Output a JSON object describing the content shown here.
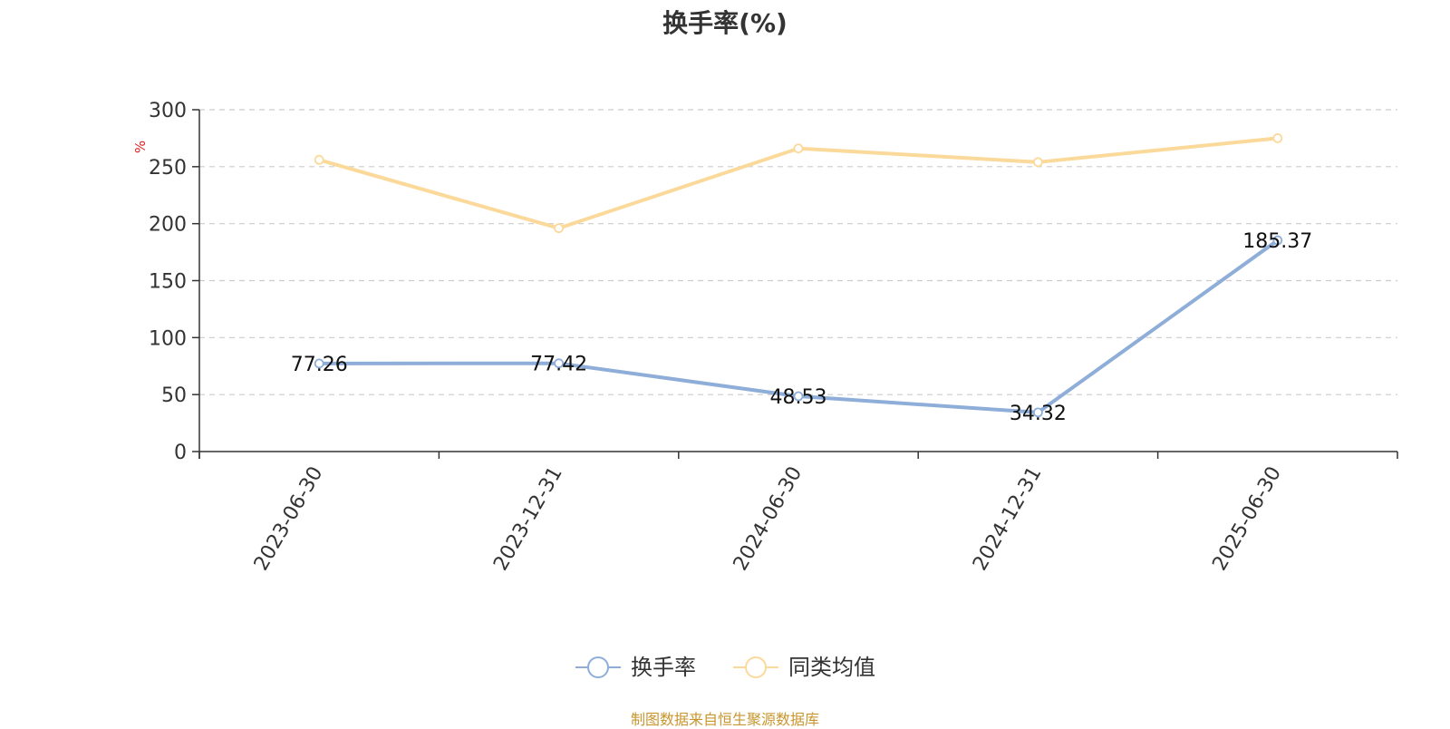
{
  "chart_data": {
    "type": "line",
    "title": "换手率(%)",
    "ylabel": "%",
    "xlabel": "",
    "categories": [
      "2023-06-30",
      "2023-12-31",
      "2024-06-30",
      "2024-12-31",
      "2025-06-30"
    ],
    "ylim": [
      0,
      300
    ],
    "yticks": [
      0,
      50,
      100,
      150,
      200,
      250,
      300
    ],
    "grid": true,
    "legend_position": "bottom",
    "series": [
      {
        "name": "换手率",
        "color": "#8eaed9",
        "values": [
          77.26,
          77.42,
          48.53,
          34.32,
          185.37
        ],
        "show_labels": true
      },
      {
        "name": "同类均值",
        "color": "#fbd99a",
        "values": [
          256,
          196,
          266,
          254,
          275
        ],
        "show_labels": false
      }
    ],
    "source_note": "制图数据来自恒生聚源数据库"
  }
}
